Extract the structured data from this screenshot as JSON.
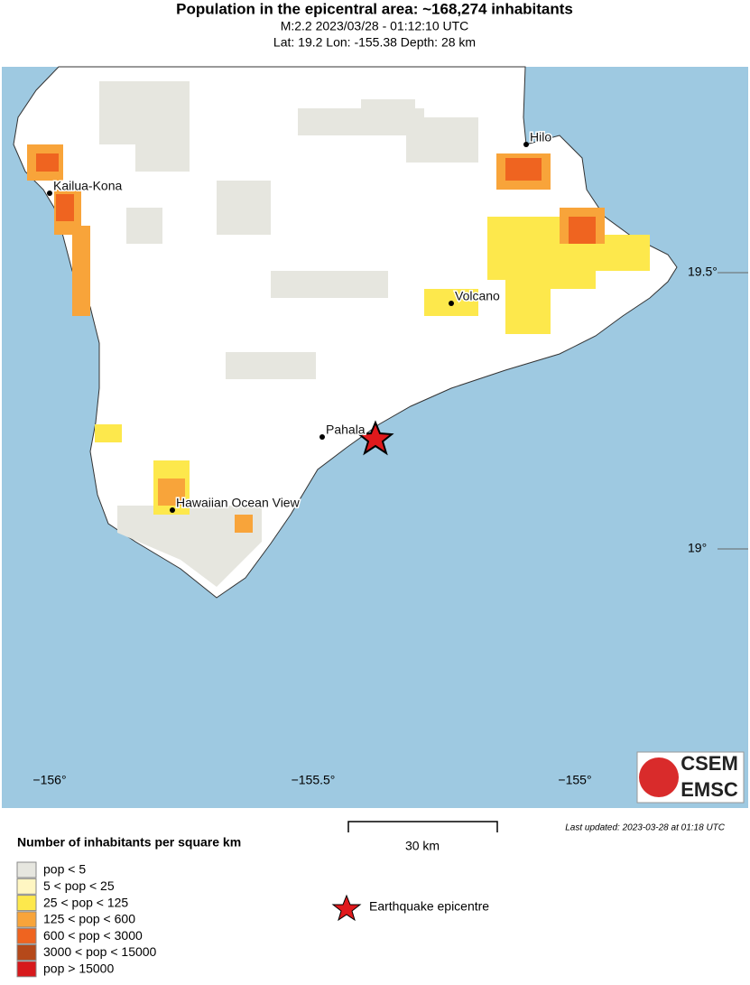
{
  "header": {
    "title": "Population in the epicentral area: ~168,274 inhabitants",
    "line1": "M:2.2 2023/03/28 - 01:12:10 UTC",
    "line2": "Lat: 19.2 Lon: -155.38 Depth: 28 km"
  },
  "map": {
    "places": [
      {
        "label": "Hilo"
      },
      {
        "label": "Kailua-Kona"
      },
      {
        "label": "Volcano"
      },
      {
        "label": "Pahala"
      },
      {
        "label": "Hawaiian Ocean View"
      }
    ],
    "lat_labels": [
      "19.5°",
      "19°"
    ],
    "lon_labels": [
      "−156°",
      "−155.5°",
      "−155°"
    ],
    "logo": [
      "CSEM",
      "EMSC"
    ]
  },
  "scale_bar": "30 km",
  "updated": "Last updated: 2023-03-28 at 01:18 UTC",
  "legend": {
    "title": "Number of inhabitants per square km",
    "items": [
      {
        "label": "pop < 5",
        "color": "#e6e6df"
      },
      {
        "label": "5 < pop < 25",
        "color": "#fff6c2"
      },
      {
        "label": "25 < pop < 125",
        "color": "#fde84c"
      },
      {
        "label": "125 < pop < 600",
        "color": "#f8a43a"
      },
      {
        "label": "600 < pop < 3000",
        "color": "#ef6420"
      },
      {
        "label": "3000 < pop < 15000",
        "color": "#b5491a"
      },
      {
        "label": "pop > 15000",
        "color": "#d7191c"
      }
    ],
    "epicentre": "Earthquake epicentre"
  }
}
